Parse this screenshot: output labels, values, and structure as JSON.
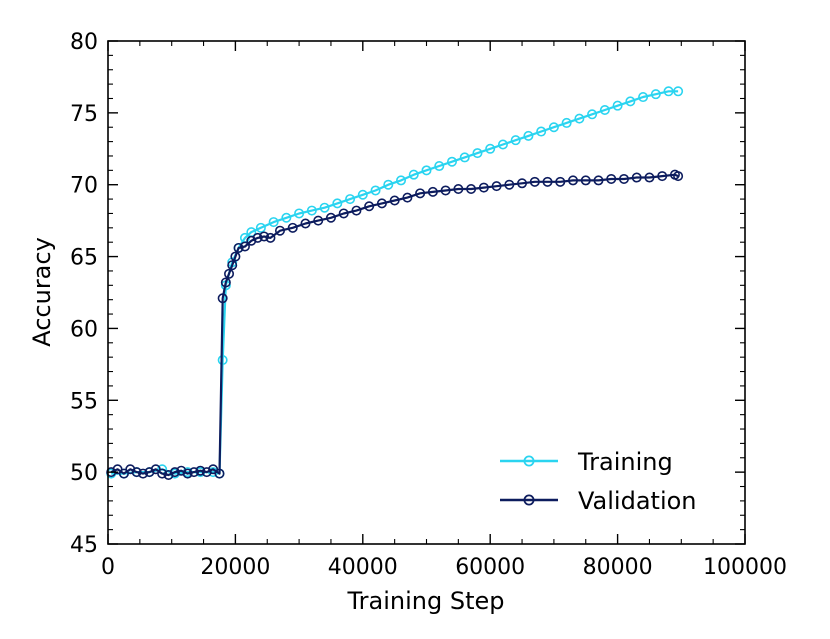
{
  "chart_data": {
    "type": "line",
    "title": "",
    "xlabel": "Training Step",
    "ylabel": "Accuracy",
    "xlim": [
      0,
      100000
    ],
    "ylim": [
      45,
      80
    ],
    "xticks": [
      0,
      20000,
      40000,
      60000,
      80000,
      100000
    ],
    "xtick_labels": [
      "0",
      "20000",
      "40000",
      "60000",
      "80000",
      "100000"
    ],
    "yticks": [
      45,
      50,
      55,
      60,
      65,
      70,
      75,
      80
    ],
    "ytick_labels": [
      "45",
      "50",
      "55",
      "60",
      "65",
      "70",
      "75",
      "80"
    ],
    "grid": false,
    "legend_position": "bottom-right",
    "marker": "open-circle",
    "series": [
      {
        "name": "Training",
        "color": "#2ad4f0",
        "x": [
          500,
          2500,
          4500,
          6500,
          8500,
          10500,
          12500,
          14500,
          16500,
          17500,
          18000,
          18500,
          19500,
          20500,
          21500,
          22500,
          24000,
          26000,
          28000,
          30000,
          32000,
          34000,
          36000,
          38000,
          40000,
          42000,
          44000,
          46000,
          48000,
          50000,
          52000,
          54000,
          56000,
          58000,
          60000,
          62000,
          64000,
          66000,
          68000,
          70000,
          72000,
          74000,
          76000,
          78000,
          80000,
          82000,
          84000,
          86000,
          88000,
          89500
        ],
        "values": [
          49.9,
          49.9,
          50.0,
          50.0,
          50.2,
          49.9,
          50.0,
          50.0,
          50.0,
          49.9,
          57.8,
          63.0,
          64.6,
          65.6,
          66.3,
          66.7,
          67.0,
          67.4,
          67.7,
          68.0,
          68.2,
          68.4,
          68.7,
          69.0,
          69.3,
          69.6,
          70.0,
          70.3,
          70.7,
          71.0,
          71.3,
          71.6,
          71.9,
          72.2,
          72.5,
          72.8,
          73.1,
          73.4,
          73.7,
          74.0,
          74.3,
          74.6,
          74.9,
          75.2,
          75.5,
          75.8,
          76.1,
          76.3,
          76.5,
          76.5
        ]
      },
      {
        "name": "Validation",
        "color": "#0d1c5e",
        "x": [
          500,
          1500,
          2500,
          3500,
          4500,
          5500,
          6500,
          7500,
          8500,
          9500,
          10500,
          11500,
          12500,
          13500,
          14500,
          15500,
          16500,
          17500,
          18000,
          18500,
          19000,
          19500,
          20000,
          20500,
          21500,
          22500,
          23500,
          24500,
          25500,
          27000,
          29000,
          31000,
          33000,
          35000,
          37000,
          39000,
          41000,
          43000,
          45000,
          47000,
          49000,
          51000,
          53000,
          55000,
          57000,
          59000,
          61000,
          63000,
          65000,
          67000,
          69000,
          71000,
          73000,
          75000,
          77000,
          79000,
          81000,
          83000,
          85000,
          87000,
          89000,
          89500
        ],
        "values": [
          50.0,
          50.2,
          49.9,
          50.2,
          50.0,
          49.9,
          50.0,
          50.2,
          49.9,
          49.8,
          50.0,
          50.1,
          49.9,
          50.0,
          50.1,
          50.0,
          50.2,
          49.9,
          62.1,
          63.2,
          63.8,
          64.4,
          65.0,
          65.6,
          65.7,
          66.1,
          66.3,
          66.4,
          66.3,
          66.8,
          67.0,
          67.3,
          67.5,
          67.7,
          68.0,
          68.2,
          68.5,
          68.7,
          68.9,
          69.1,
          69.4,
          69.5,
          69.6,
          69.7,
          69.7,
          69.8,
          69.9,
          70.0,
          70.1,
          70.2,
          70.2,
          70.2,
          70.3,
          70.3,
          70.3,
          70.4,
          70.4,
          70.5,
          70.5,
          70.6,
          70.7,
          70.6
        ]
      }
    ]
  }
}
